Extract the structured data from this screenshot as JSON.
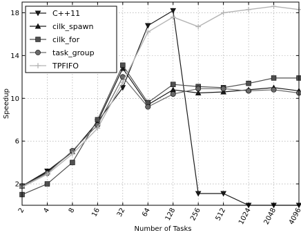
{
  "chart_data": {
    "type": "line",
    "xlabel": "Number of Tasks",
    "ylabel": "Speedup",
    "x": [
      "2",
      "4",
      "8",
      "16",
      "32",
      "64",
      "128",
      "256",
      "512",
      "1024",
      "2048",
      "4096"
    ],
    "ylim": [
      0,
      19
    ],
    "yticks": [
      2,
      6,
      10,
      14,
      18
    ],
    "grid": true,
    "legend_position": "top-left",
    "series": [
      {
        "name": "C++11",
        "marker": "triangle-down",
        "color": "#1a1a1a",
        "values": [
          1.8,
          3.2,
          5.0,
          7.8,
          11.0,
          16.8,
          18.2,
          1.1,
          1.1,
          0.0,
          0.0,
          0.0
        ]
      },
      {
        "name": "cilk_spawn",
        "marker": "triangle-up",
        "color": "#1a1a1a",
        "values": [
          1.8,
          3.1,
          5.0,
          7.8,
          12.8,
          9.4,
          10.8,
          10.5,
          10.6,
          10.8,
          11.0,
          10.7
        ]
      },
      {
        "name": "cilk_for",
        "marker": "square",
        "color": "#505050",
        "values": [
          1.0,
          2.0,
          4.0,
          8.0,
          13.1,
          9.6,
          11.3,
          11.1,
          11.0,
          11.4,
          11.9,
          11.9
        ]
      },
      {
        "name": "task_group",
        "marker": "circle",
        "color": "#6a6a6a",
        "values": [
          1.8,
          3.0,
          5.1,
          7.5,
          12.0,
          9.2,
          10.4,
          10.9,
          10.9,
          10.7,
          10.8,
          10.5
        ]
      },
      {
        "name": "TPFIFO",
        "marker": "plus",
        "color": "#b4b4b4",
        "values": [
          1.7,
          2.9,
          4.8,
          7.2,
          11.5,
          16.2,
          17.6,
          16.7,
          18.0,
          18.3,
          18.6,
          18.3
        ]
      }
    ]
  }
}
